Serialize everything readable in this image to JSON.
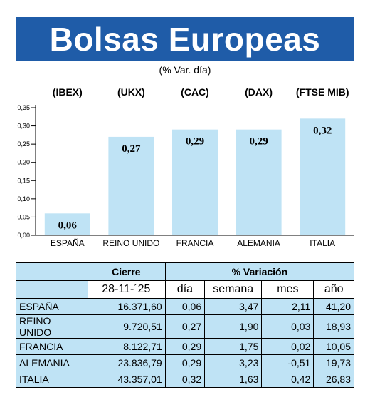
{
  "title": "Bolsas Europeas",
  "subtitle": "(% Var. día)",
  "chart_data": {
    "type": "bar",
    "categories": [
      "ESPAÑA",
      "REINO UNIDO",
      "FRANCIA",
      "ALEMANIA",
      "ITALIA"
    ],
    "index_codes": [
      "(IBEX)",
      "(UKX)",
      "(CAC)",
      "(DAX)",
      "(FTSE MIB)"
    ],
    "values": [
      0.06,
      0.27,
      0.29,
      0.29,
      0.32
    ],
    "value_labels": [
      "0,06",
      "0,27",
      "0,29",
      "0,29",
      "0,32"
    ],
    "yticks": [
      "0,00",
      "0,05",
      "0,10",
      "0,15",
      "0,20",
      "0,25",
      "0,30",
      "0,35"
    ],
    "ylim": [
      0,
      0.35
    ],
    "bar_color": "#bfe3f5",
    "grid": false
  },
  "table": {
    "header_cierre": "Cierre",
    "header_variacion": "% Variación",
    "date": "28-11-´25",
    "col_dia": "día",
    "col_semana": "semana",
    "col_mes": "mes",
    "col_ano": "año",
    "rows": [
      {
        "country": "ESPAÑA",
        "cierre": "16.371,60",
        "dia": "0,06",
        "semana": "3,47",
        "mes": "2,11",
        "ano": "41,20"
      },
      {
        "country": "REINO UNIDO",
        "cierre": "9.720,51",
        "dia": "0,27",
        "semana": "1,90",
        "mes": "0,03",
        "ano": "18,93"
      },
      {
        "country": "FRANCIA",
        "cierre": "8.122,71",
        "dia": "0,29",
        "semana": "1,75",
        "mes": "0,02",
        "ano": "10,05"
      },
      {
        "country": "ALEMANIA",
        "cierre": "23.836,79",
        "dia": "0,29",
        "semana": "3,23",
        "mes": "-0,51",
        "ano": "19,73"
      },
      {
        "country": "ITALIA",
        "cierre": "43.357,01",
        "dia": "0,32",
        "semana": "1,63",
        "mes": "0,42",
        "ano": "26,83"
      }
    ]
  }
}
